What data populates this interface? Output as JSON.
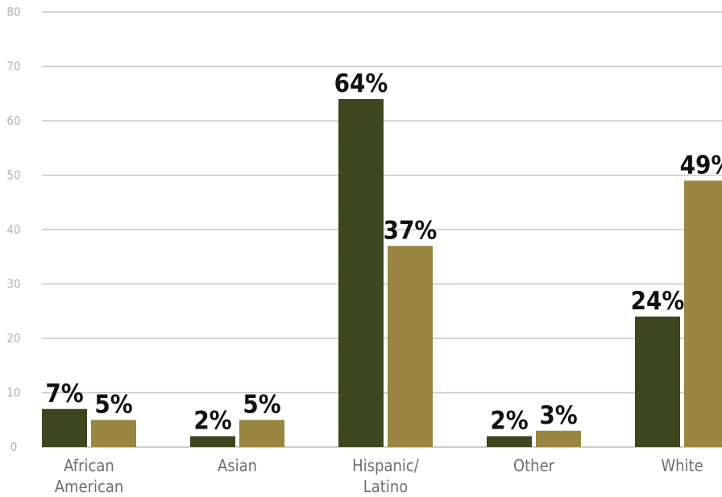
{
  "chart_data": {
    "type": "bar",
    "categories": [
      [
        "African",
        "American"
      ],
      [
        "Asian"
      ],
      [
        "Hispanic/",
        "Latino"
      ],
      [
        "Other"
      ],
      [
        "White"
      ]
    ],
    "series": [
      {
        "values": [
          7,
          2,
          64,
          2,
          24
        ],
        "labels": [
          "7%",
          "2%",
          "64%",
          "2%",
          "24%"
        ],
        "color": "#3e4620"
      },
      {
        "values": [
          5,
          5,
          37,
          3,
          49
        ],
        "labels": [
          "5%",
          "5%",
          "37%",
          "3%",
          "49%"
        ],
        "color": "#998641"
      }
    ],
    "ylim": [
      0,
      80
    ],
    "yticks": [
      "0",
      "10",
      "20",
      "30",
      "40",
      "50",
      "60",
      "70",
      "80"
    ],
    "grid": true,
    "legend": "none"
  }
}
